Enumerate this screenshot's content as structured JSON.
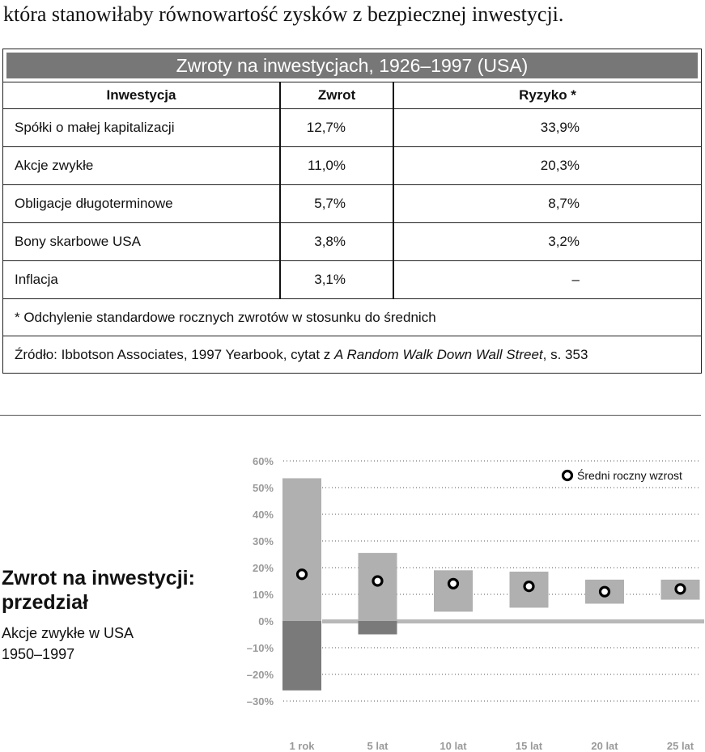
{
  "intro_line": "która stanowiłaby równowartość zysków z bezpiecznej inwestycji.",
  "table": {
    "title": "Zwroty na inwestycjach, 1926–1997 (USA)",
    "headers": [
      "Inwestycja",
      "Zwrot",
      "Ryzyko *"
    ],
    "rows": [
      [
        "Spółki o małej kapitalizacji",
        "12,7%",
        "33,9%"
      ],
      [
        "Akcje zwykłe",
        "11,0%",
        "20,3%"
      ],
      [
        "Obligacje długoterminowe",
        "5,7%",
        "8,7%"
      ],
      [
        "Bony skarbowe USA",
        "3,8%",
        "3,2%"
      ],
      [
        "Inflacja",
        "3,1%",
        "–"
      ]
    ],
    "footnote": "* Odchylenie standardowe rocznych zwrotów w stosunku do średnich",
    "source_prefix": "Źródło: Ibbotson Associates, 1997 Yearbook, cytat z ",
    "source_italic": "A Random Walk Down Wall Street",
    "source_suffix": ", s. 353"
  },
  "chart_side": {
    "title_line1": "Zwrot na inwestycji:",
    "title_line2": "przedział",
    "subtitle_line1": "Akcje zwykłe w USA",
    "subtitle_line2": "1950–1997"
  },
  "chart_data": {
    "type": "bar",
    "title": "",
    "legend": "Średni roczny wzrost",
    "legend_position": "top-right",
    "ylim": [
      -30,
      60
    ],
    "yticks": [
      60,
      50,
      40,
      30,
      20,
      10,
      0,
      -10,
      -20,
      -30
    ],
    "ytick_labels": [
      "60%",
      "50%",
      "40%",
      "30%",
      "20%",
      "10%",
      "0%",
      "–10%",
      "–20%",
      "–30%"
    ],
    "grid": true,
    "categories": [
      "1 rok",
      "5 lat",
      "10 lat",
      "15 lat",
      "20 lat",
      "25 lat"
    ],
    "ranges": [
      {
        "low": -26,
        "high": 53.5,
        "mean": 17.5
      },
      {
        "low": -5,
        "high": 25.5,
        "mean": 15
      },
      {
        "low": 3.5,
        "high": 19,
        "mean": 14
      },
      {
        "low": 5,
        "high": 18.5,
        "mean": 13
      },
      {
        "low": 6.5,
        "high": 15.5,
        "mean": 11
      },
      {
        "low": 8,
        "high": 15.5,
        "mean": 12
      }
    ],
    "colors": {
      "positive": "#b0b0b0",
      "negative": "#7a7a7a",
      "baseline": "#b8b8b8",
      "grid": "#555555",
      "marker_fill": "#ffffff",
      "marker_stroke": "#000000"
    }
  }
}
